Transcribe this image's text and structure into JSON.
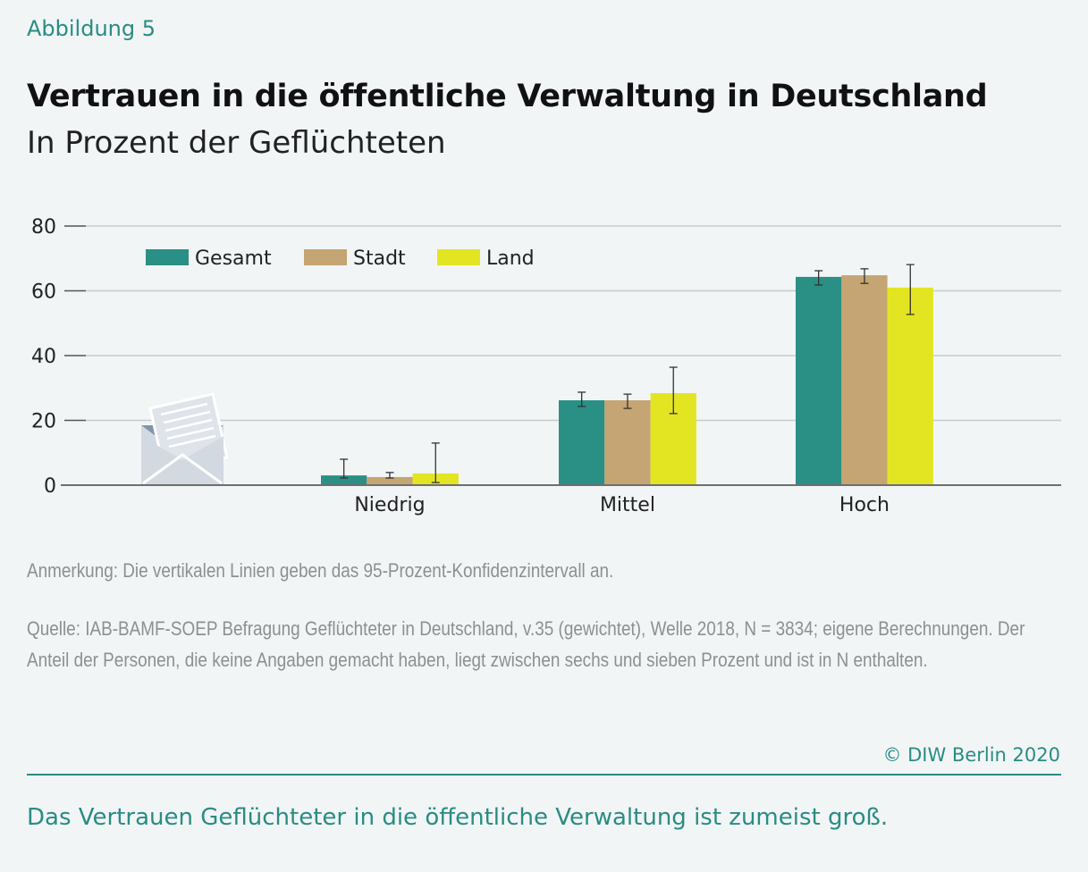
{
  "figure_label": "Abbildung 5",
  "title": "Vertrauen in die öffentliche Verwaltung in Deutschland",
  "subtitle": "In Prozent der Geflüchteten",
  "note": "Anmerkung: Die vertikalen Linien geben das 95-Prozent-Konfidenzintervall an.",
  "source": "Quelle: IAB-BAMF-SOEP Befragung Geflüchteter in Deutschland, v.35 (gewichtet), Welle 2018, N = 3834; eigene Berechnungen. Der Anteil der Personen, die keine Angaben gemacht haben, liegt zwischen sechs und sieben Prozent und ist in N enthalten.",
  "copyright": "© DIW Berlin 2020",
  "takeaway": "Das Vertrauen Geflüchteter in die öffentliche Verwaltung ist zumeist groß.",
  "icon": "envelope-with-letter-icon",
  "chart_data": {
    "type": "bar",
    "title": "Vertrauen in die öffentliche Verwaltung in Deutschland",
    "subtitle": "In Prozent der Geflüchteten",
    "xlabel": "",
    "ylabel": "",
    "ylim": [
      0,
      80
    ],
    "yticks": [
      0,
      20,
      40,
      60,
      80
    ],
    "ytick_labels": [
      "0",
      "20",
      "40",
      "60",
      "80"
    ],
    "grid": true,
    "legend_position": "top-left",
    "categories": [
      "Niedrig",
      "Mittel",
      "Hoch"
    ],
    "series": [
      {
        "name": "Gesamt",
        "color": "#2a8f85",
        "values": [
          3.0,
          26.2,
          64.3
        ],
        "ci_low": [
          2.2,
          24.3,
          61.8
        ],
        "ci_high": [
          8.0,
          28.7,
          66.2
        ]
      },
      {
        "name": "Stadt",
        "color": "#c4a573",
        "values": [
          2.5,
          26.2,
          64.8
        ],
        "ci_low": [
          2.2,
          23.7,
          62.3
        ],
        "ci_high": [
          3.9,
          28.1,
          66.8
        ]
      },
      {
        "name": "Land",
        "color": "#e4e522",
        "values": [
          3.6,
          28.4,
          61.0
        ],
        "ci_low": [
          0.8,
          22.1,
          52.7
        ],
        "ci_high": [
          13.0,
          36.4,
          68.1
        ]
      }
    ]
  }
}
